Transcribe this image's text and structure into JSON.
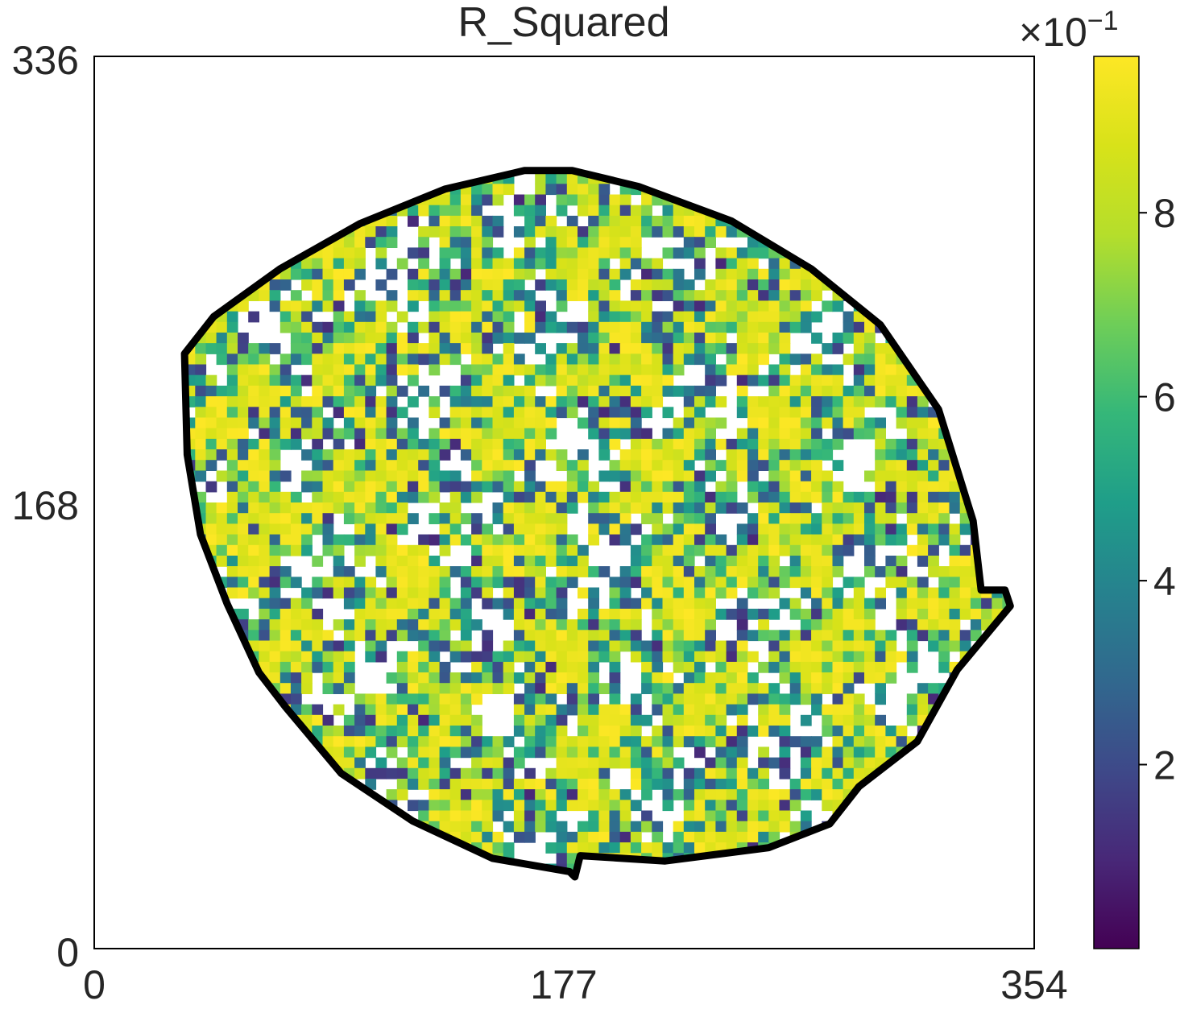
{
  "chart_data": {
    "type": "heatmap",
    "title": "R_Squared",
    "xlabel": "",
    "ylabel": "",
    "xlim": [
      0,
      354
    ],
    "ylim": [
      0,
      336
    ],
    "x_ticks": [
      "0",
      "177",
      "354"
    ],
    "y_ticks": [
      "0",
      "168",
      "336"
    ],
    "colorbar": {
      "colormap": "viridis",
      "range": [
        0.0,
        9.7
      ],
      "ticks": [
        "2",
        "4",
        "6",
        "8"
      ],
      "tick_values": [
        2,
        4,
        6,
        8
      ],
      "exponent_label_base": "×10",
      "exponent_label_power": "−1"
    },
    "boundary": {
      "color": "#000000",
      "description_points": [
        [
          181,
          309
        ],
        [
          183,
          301
        ],
        [
          215,
          303
        ],
        [
          254,
          298
        ],
        [
          277,
          289
        ],
        [
          288,
          275
        ],
        [
          310,
          258
        ],
        [
          325,
          231
        ],
        [
          340,
          213
        ],
        [
          345,
          207
        ],
        [
          343,
          201
        ],
        [
          334,
          201
        ],
        [
          331,
          175
        ],
        [
          318,
          133
        ],
        [
          296,
          101
        ],
        [
          270,
          80
        ],
        [
          240,
          62
        ],
        [
          205,
          49
        ],
        [
          180,
          43
        ],
        [
          162,
          43
        ],
        [
          132,
          50
        ],
        [
          100,
          63
        ],
        [
          70,
          80
        ],
        [
          45,
          98
        ],
        [
          34,
          112
        ],
        [
          35,
          150
        ],
        [
          40,
          180
        ],
        [
          50,
          206
        ],
        [
          62,
          232
        ],
        [
          72,
          245
        ],
        [
          93,
          270
        ],
        [
          120,
          288
        ],
        [
          150,
          302
        ],
        [
          179,
          307
        ],
        [
          181,
          309
        ]
      ]
    },
    "palette_stops": [
      [
        0.0,
        "#440154"
      ],
      [
        0.1,
        "#482878"
      ],
      [
        0.2,
        "#3e4989"
      ],
      [
        0.3,
        "#31688e"
      ],
      [
        0.4,
        "#26828e"
      ],
      [
        0.5,
        "#1f9e89"
      ],
      [
        0.6,
        "#35b779"
      ],
      [
        0.7,
        "#6ece58"
      ],
      [
        0.8,
        "#b5de2b"
      ],
      [
        0.9,
        "#d8e219"
      ],
      [
        1.0,
        "#fde725"
      ]
    ]
  }
}
